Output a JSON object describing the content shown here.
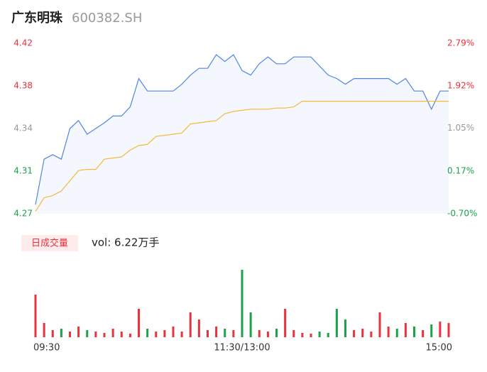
{
  "chart_data": {
    "type": "intraday",
    "title": "广东明珠",
    "code": "600382.SH",
    "xlim": [
      0,
      240
    ],
    "xticks": [
      {
        "value": 0,
        "label": "09:30"
      },
      {
        "value": 120,
        "label": "11:30/13:00"
      },
      {
        "value": 240,
        "label": "15:00"
      }
    ],
    "ylim": [
      4.27,
      4.42
    ],
    "yticks": [
      {
        "value": 4.27,
        "label": "4.27"
      },
      {
        "value": 4.3075,
        "label": "4.31"
      },
      {
        "value": 4.345,
        "label": "4.34"
      },
      {
        "value": 4.3825,
        "label": "4.38"
      },
      {
        "value": 4.42,
        "label": "4.42"
      }
    ],
    "ytick_colors": [
      "#1aa34a",
      "#1aa34a",
      "#999999",
      "#e8323c",
      "#e8323c"
    ],
    "y2lim": [
      -0.7,
      2.79
    ],
    "y2ticks": [
      {
        "value": -0.7,
        "label": "-0.70%"
      },
      {
        "value": 0.17,
        "label": "0.17%"
      },
      {
        "value": 1.05,
        "label": "1.05%"
      },
      {
        "value": 1.92,
        "label": "1.92%"
      },
      {
        "value": 2.79,
        "label": "2.79%"
      }
    ],
    "x": [
      0,
      5,
      10,
      15,
      20,
      25,
      30,
      35,
      40,
      45,
      50,
      55,
      60,
      65,
      70,
      75,
      80,
      85,
      90,
      95,
      100,
      105,
      110,
      115,
      120,
      125,
      130,
      135,
      140,
      145,
      150,
      155,
      160,
      165,
      170,
      175,
      180,
      185,
      190,
      195,
      200,
      205,
      210,
      215,
      220,
      225,
      230,
      235,
      240
    ],
    "series": [
      {
        "name": "price",
        "color": "#4f86e6",
        "values": [
          4.278,
          4.318,
          4.322,
          4.318,
          4.345,
          4.352,
          4.34,
          4.345,
          4.35,
          4.356,
          4.356,
          4.364,
          4.389,
          4.378,
          4.378,
          4.378,
          4.378,
          4.384,
          4.392,
          4.398,
          4.398,
          4.41,
          4.404,
          4.41,
          4.396,
          4.392,
          4.402,
          4.408,
          4.402,
          4.402,
          4.408,
          4.408,
          4.408,
          4.4,
          4.392,
          4.389,
          4.384,
          4.389,
          4.389,
          4.389,
          4.389,
          4.389,
          4.384,
          4.389,
          4.378,
          4.378,
          4.362,
          4.378,
          4.378
        ]
      },
      {
        "name": "average",
        "color": "#f5b93b",
        "values": [
          4.272,
          4.284,
          4.286,
          4.29,
          4.299,
          4.308,
          4.309,
          4.309,
          4.318,
          4.319,
          4.32,
          4.326,
          4.33,
          4.331,
          4.338,
          4.339,
          4.34,
          4.341,
          4.349,
          4.35,
          4.351,
          4.352,
          4.358,
          4.36,
          4.361,
          4.362,
          4.362,
          4.362,
          4.363,
          4.363,
          4.364,
          4.369,
          4.369,
          4.369,
          4.369,
          4.369,
          4.369,
          4.369,
          4.369,
          4.369,
          4.369,
          4.369,
          4.369,
          4.369,
          4.369,
          4.369,
          4.369,
          4.369,
          4.369
        ]
      }
    ],
    "volume": {
      "tag": "日成交量",
      "label": "vol: 6.22万手",
      "ylim": [
        0,
        9500
      ],
      "up_color": "#e8323c",
      "down_color": "#1aa34a",
      "values": [
        6000,
        2000,
        1000,
        1200,
        800,
        1500,
        1000,
        800,
        600,
        1200,
        800,
        500,
        4000,
        1200,
        800,
        1000,
        1500,
        800,
        3500,
        2500,
        1000,
        1500,
        1200,
        1000,
        9500,
        3500,
        1000,
        800,
        1200,
        4000,
        1000,
        600,
        500,
        800,
        600,
        4000,
        2500,
        1000,
        1200,
        800,
        3500,
        1500,
        1200,
        2000,
        1500,
        1000,
        1800,
        2200,
        2000
      ]
    }
  }
}
